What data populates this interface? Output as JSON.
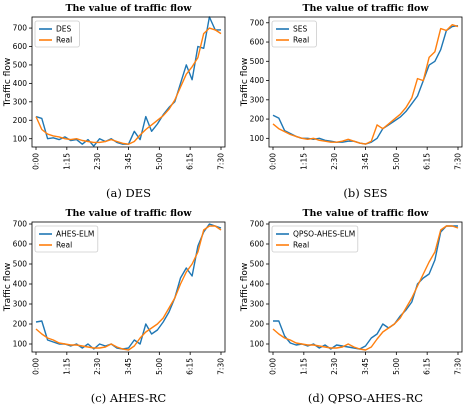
{
  "chart_data": [
    {
      "id": "des",
      "type": "line",
      "title": "The value of traffic flow",
      "caption": "(a) DES",
      "ylabel": "Traffic flow",
      "xlabel": "",
      "ylim": [
        55,
        760
      ],
      "yticks": [
        100,
        200,
        300,
        400,
        500,
        600,
        700
      ],
      "xticks": [
        "0:00",
        "1:15",
        "2:30",
        "3:45",
        "5:00",
        "6:15",
        "7:30"
      ],
      "x_count": 33,
      "legend": "top-left",
      "grid": false,
      "series": [
        {
          "name": "DES",
          "color": "#1f77b4",
          "values": [
            220,
            210,
            100,
            105,
            95,
            110,
            90,
            95,
            70,
            95,
            60,
            100,
            85,
            100,
            80,
            70,
            70,
            140,
            95,
            220,
            140,
            180,
            230,
            270,
            300,
            400,
            500,
            420,
            600,
            590,
            760,
            690,
            690
          ]
        },
        {
          "name": "Real",
          "color": "#ff7f0e",
          "values": [
            220,
            150,
            125,
            115,
            110,
            100,
            95,
            100,
            90,
            85,
            80,
            80,
            85,
            95,
            85,
            75,
            70,
            85,
            120,
            150,
            175,
            200,
            225,
            260,
            310,
            380,
            450,
            490,
            540,
            670,
            700,
            690,
            670
          ]
        }
      ]
    },
    {
      "id": "ses",
      "type": "line",
      "title": "The value of traffic flow",
      "caption": "(b) SES",
      "ylabel": "Traffic flow",
      "xlabel": "",
      "ylim": [
        55,
        730
      ],
      "yticks": [
        100,
        200,
        300,
        400,
        500,
        600,
        700
      ],
      "xticks": [
        "0:00",
        "1:15",
        "2:30",
        "3:45",
        "5:00",
        "6:15",
        "7:30"
      ],
      "x_count": 33,
      "legend": "top-left",
      "grid": false,
      "series": [
        {
          "name": "SES",
          "color": "#1f77b4",
          "values": [
            220,
            205,
            140,
            125,
            110,
            100,
            100,
            95,
            100,
            90,
            85,
            80,
            80,
            85,
            85,
            75,
            70,
            80,
            100,
            150,
            170,
            190,
            210,
            240,
            280,
            320,
            400,
            480,
            500,
            560,
            660,
            680,
            685
          ]
        },
        {
          "name": "Real",
          "color": "#ff7f0e",
          "values": [
            175,
            150,
            135,
            120,
            110,
            100,
            95,
            100,
            90,
            85,
            80,
            80,
            85,
            95,
            85,
            75,
            70,
            85,
            170,
            150,
            175,
            200,
            225,
            260,
            310,
            410,
            400,
            520,
            550,
            670,
            660,
            690,
            680
          ]
        }
      ]
    },
    {
      "id": "ahes-rc",
      "type": "line",
      "title": "The value of traffic flow",
      "caption": "(c) AHES-RC",
      "ylabel": "Traffic flow",
      "xlabel": "",
      "ylim": [
        60,
        710
      ],
      "yticks": [
        100,
        200,
        300,
        400,
        500,
        600,
        700
      ],
      "xticks": [
        "0:00",
        "1:15",
        "2:30",
        "3:45",
        "5:00",
        "6:15",
        "7:30"
      ],
      "x_count": 33,
      "legend": "top-left",
      "grid": false,
      "series": [
        {
          "name": "AHES-ELM",
          "color": "#1f77b4",
          "values": [
            210,
            215,
            120,
            110,
            100,
            100,
            90,
            100,
            80,
            100,
            75,
            100,
            90,
            100,
            80,
            75,
            80,
            120,
            100,
            200,
            150,
            170,
            210,
            260,
            330,
            430,
            480,
            440,
            590,
            660,
            700,
            690,
            680
          ]
        },
        {
          "name": "Real",
          "color": "#ff7f0e",
          "values": [
            175,
            150,
            130,
            120,
            105,
            100,
            95,
            95,
            90,
            85,
            80,
            80,
            85,
            100,
            85,
            75,
            70,
            90,
            130,
            160,
            180,
            200,
            230,
            280,
            330,
            400,
            460,
            500,
            560,
            670,
            690,
            690,
            670
          ]
        }
      ]
    },
    {
      "id": "qpso-ahes-rc",
      "type": "line",
      "title": "The value of traffic flow",
      "caption": "(d) QPSO-AHES-RC",
      "ylabel": "Traffic flow",
      "xlabel": "",
      "ylim": [
        60,
        710
      ],
      "yticks": [
        100,
        200,
        300,
        400,
        500,
        600,
        700
      ],
      "xticks": [
        "0:00",
        "1:15",
        "2:30",
        "3:45",
        "5:00",
        "6:15",
        "7:30"
      ],
      "x_count": 33,
      "legend": "top-left",
      "grid": false,
      "series": [
        {
          "name": "QPSO-AHES-ELM",
          "color": "#1f77b4",
          "values": [
            215,
            215,
            140,
            105,
            95,
            100,
            90,
            100,
            80,
            95,
            75,
            95,
            90,
            85,
            80,
            75,
            90,
            130,
            150,
            200,
            180,
            200,
            240,
            270,
            310,
            400,
            430,
            450,
            520,
            660,
            690,
            690,
            690
          ]
        },
        {
          "name": "Real",
          "color": "#ff7f0e",
          "values": [
            175,
            150,
            130,
            120,
            105,
            100,
            95,
            95,
            90,
            85,
            80,
            80,
            85,
            100,
            85,
            75,
            70,
            85,
            125,
            160,
            180,
            200,
            230,
            280,
            330,
            390,
            450,
            510,
            560,
            670,
            690,
            690,
            680
          ]
        }
      ]
    }
  ]
}
